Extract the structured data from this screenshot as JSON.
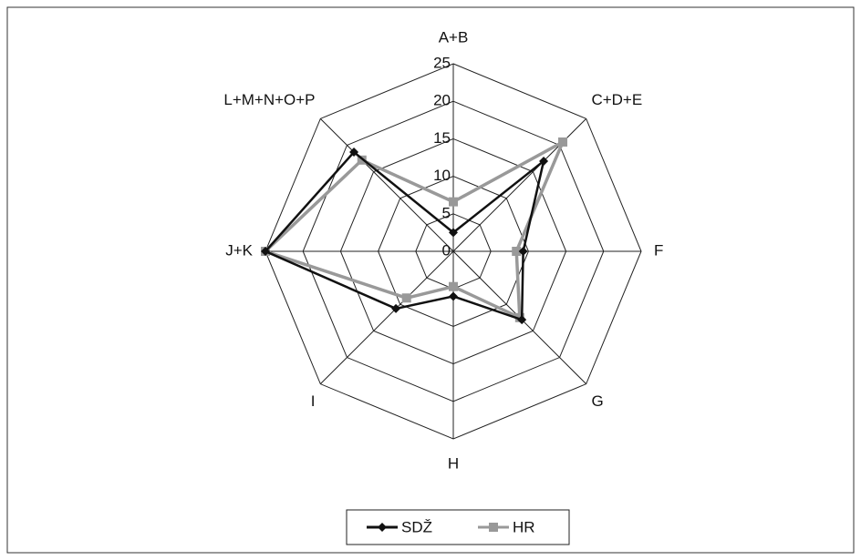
{
  "chart_data": {
    "type": "radar",
    "categories": [
      "A+B",
      "C+D+E",
      "F",
      "G",
      "H",
      "I",
      "J+K",
      "L+M+N+O+P"
    ],
    "series": [
      {
        "name": "SDŽ",
        "color": "#111111",
        "marker": "diamond",
        "values": [
          2.5,
          17,
          9.3,
          12.9,
          6,
          10.8,
          25,
          18.7
        ]
      },
      {
        "name": "HR",
        "color": "#999999",
        "marker": "square",
        "values": [
          6.6,
          20.6,
          8.4,
          12.5,
          4.7,
          8.8,
          25,
          17.2
        ]
      }
    ],
    "ylim": [
      0,
      25
    ],
    "yticks": [
      0,
      5,
      10,
      15,
      20,
      25
    ],
    "grid": true,
    "legend": "bottom"
  }
}
